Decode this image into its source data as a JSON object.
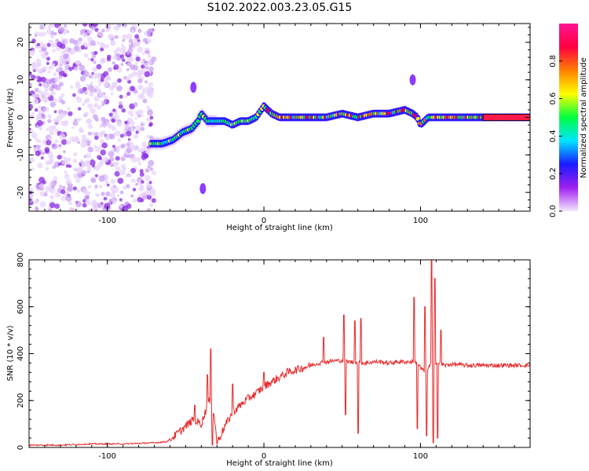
{
  "title": "S102.2022.003.23.05.G15",
  "colors": {
    "line": "#e8282a",
    "frame": "#000000"
  },
  "chart_data": [
    {
      "type": "heatmap",
      "name": "spectrogram",
      "xlabel": "Height of straight line (km)",
      "ylabel": "Frequency (Hz)",
      "xlim": [
        -150,
        170
      ],
      "ylim": [
        -25,
        25
      ],
      "xticks": [
        -100,
        0,
        100
      ],
      "yticks": [
        20,
        10,
        0,
        -10,
        -20
      ],
      "colorbar": {
        "label": "Normalized spectral amplitude",
        "range": [
          0,
          1
        ],
        "ticks": [
          "0.0",
          "0.2",
          "0.4",
          "0.6",
          "0.8"
        ],
        "colormap": [
          "#f5e6ff",
          "#a020f0",
          "#1a1aff",
          "#00e5ff",
          "#00ff40",
          "#ffff00",
          "#ff8000",
          "#ff0040",
          "#ff1493"
        ]
      },
      "noise_region_x": [
        -150,
        -70
      ],
      "ridge": {
        "x": [
          -72,
          -65,
          -58,
          -52,
          -46,
          -42,
          -40,
          -38,
          -36,
          -30,
          -25,
          -20,
          -15,
          -10,
          -5,
          0,
          5,
          10,
          20,
          30,
          40,
          50,
          60,
          70,
          80,
          90,
          95,
          98,
          100,
          105,
          110,
          120,
          130,
          140,
          150,
          160,
          170
        ],
        "y": [
          -7,
          -7,
          -6,
          -4,
          -3,
          -1,
          1,
          0,
          -1,
          -1,
          -1,
          -2,
          -1,
          -1,
          0,
          3,
          1,
          0,
          0,
          0,
          0,
          1,
          0,
          1,
          1,
          2,
          1,
          0,
          -2,
          0,
          0,
          0,
          0,
          0,
          0,
          0,
          0
        ]
      },
      "features": [
        {
          "x": -39,
          "y": -19
        },
        {
          "x": -45,
          "y": 8
        },
        {
          "x": 95,
          "y": 10
        }
      ]
    },
    {
      "type": "line",
      "name": "snr",
      "xlabel": "Height of straight line (km)",
      "ylabel": "SNR (10 * v/v)",
      "xlim": [
        -150,
        170
      ],
      "ylim": [
        0,
        800
      ],
      "xticks": [
        -100,
        0,
        100
      ],
      "yticks": [
        0,
        200,
        400,
        600,
        800
      ],
      "x": [
        -150,
        -130,
        -110,
        -90,
        -70,
        -62,
        -55,
        -50,
        -45,
        -40,
        -35,
        -32,
        -30,
        -25,
        -20,
        -15,
        -10,
        -5,
        0,
        5,
        10,
        15,
        20,
        25,
        30,
        35,
        40,
        45,
        50,
        55,
        60,
        65,
        70,
        75,
        80,
        85,
        90,
        95,
        98,
        100,
        103,
        106,
        108,
        110,
        113,
        116,
        120,
        130,
        140,
        150,
        160,
        170
      ],
      "y": [
        10,
        10,
        15,
        15,
        20,
        25,
        60,
        90,
        120,
        100,
        200,
        150,
        20,
        90,
        150,
        180,
        210,
        230,
        260,
        280,
        300,
        320,
        330,
        340,
        350,
        360,
        365,
        370,
        370,
        365,
        360,
        360,
        365,
        365,
        360,
        365,
        365,
        365,
        360,
        340,
        320,
        350,
        380,
        360,
        355,
        350,
        355,
        350,
        350,
        350,
        350,
        350
      ],
      "spikes": [
        {
          "x": -34,
          "y": 420
        },
        {
          "x": -33,
          "y": 10
        },
        {
          "x": -36,
          "y": 310
        },
        {
          "x": -44,
          "y": 180
        },
        {
          "x": -20,
          "y": 270
        },
        {
          "x": 0,
          "y": 320
        },
        {
          "x": 38,
          "y": 470
        },
        {
          "x": 51,
          "y": 565
        },
        {
          "x": 52,
          "y": 140
        },
        {
          "x": 58,
          "y": 540
        },
        {
          "x": 60,
          "y": 60
        },
        {
          "x": 62,
          "y": 550
        },
        {
          "x": 96,
          "y": 640
        },
        {
          "x": 98,
          "y": 80
        },
        {
          "x": 103,
          "y": 600
        },
        {
          "x": 104,
          "y": 50
        },
        {
          "x": 107,
          "y": 800
        },
        {
          "x": 108,
          "y": 20
        },
        {
          "x": 109,
          "y": 720
        },
        {
          "x": 111,
          "y": 40
        },
        {
          "x": 113,
          "y": 500
        }
      ]
    }
  ]
}
